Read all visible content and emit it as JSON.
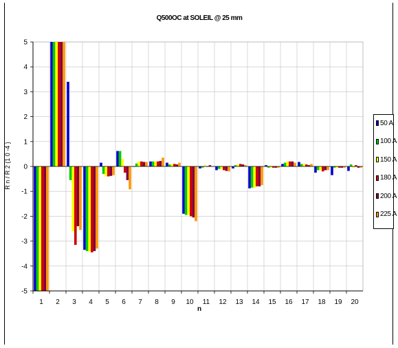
{
  "chart_data": {
    "type": "bar",
    "title": "Q500OC at SOLEIL @ 25 mm",
    "xlabel": "n",
    "ylabel": "R n / R 2 (1 0 -4 )",
    "ylim": [
      -5,
      5
    ],
    "yticks": [
      5,
      4,
      3,
      2,
      1,
      0,
      -1,
      -2,
      -3,
      -4,
      -5
    ],
    "grid": true,
    "legend_position": "right",
    "categories": [
      "1",
      "2",
      "3",
      "4",
      "5",
      "6",
      "7",
      "8",
      "9",
      "10",
      "11",
      "12",
      "13",
      "14",
      "15",
      "16",
      "17",
      "18",
      "19",
      "20"
    ],
    "series": [
      {
        "name": "50 A",
        "color": "#0000cc",
        "values": [
          -5.5,
          5.5,
          3.4,
          -3.35,
          0.15,
          0.62,
          0.0,
          0.2,
          0.15,
          -1.9,
          -0.08,
          -0.15,
          -0.08,
          -0.88,
          0.05,
          0.1,
          0.18,
          -0.25,
          -0.35,
          -0.18
        ]
      },
      {
        "name": "100 A",
        "color": "#00cc00",
        "values": [
          -5.5,
          5.5,
          -0.55,
          -3.4,
          -0.3,
          0.62,
          0.12,
          0.2,
          0.08,
          -1.95,
          -0.05,
          -0.1,
          0.05,
          -0.85,
          -0.05,
          0.15,
          0.1,
          -0.15,
          -0.05,
          0.08
        ]
      },
      {
        "name": "150 A",
        "color": "#ffff00",
        "values": [
          -5.5,
          5.5,
          -2.6,
          -3.42,
          -0.4,
          0.3,
          0.2,
          0.2,
          0.1,
          -1.95,
          0.05,
          -0.1,
          0.08,
          -0.85,
          -0.05,
          0.2,
          0.1,
          -0.15,
          -0.05,
          -0.05
        ]
      },
      {
        "name": "180 A",
        "color": "#cc0000",
        "values": [
          -5.5,
          5.5,
          -3.15,
          -3.45,
          -0.4,
          -0.25,
          0.2,
          0.2,
          0.1,
          -2.0,
          0.0,
          -0.15,
          0.1,
          -0.8,
          -0.05,
          0.2,
          0.08,
          -0.2,
          -0.05,
          0.05
        ]
      },
      {
        "name": "200 A",
        "color": "#800040",
        "values": [
          -5.5,
          5.5,
          -2.4,
          -3.4,
          -0.38,
          -0.55,
          0.18,
          0.22,
          0.08,
          -2.05,
          0.05,
          -0.18,
          0.08,
          -0.8,
          -0.05,
          0.2,
          0.05,
          -0.15,
          -0.05,
          -0.05
        ]
      },
      {
        "name": "225 A",
        "color": "#ff9900",
        "values": [
          -5.5,
          5.5,
          -2.55,
          -3.3,
          -0.35,
          -0.92,
          0.18,
          0.35,
          0.15,
          -2.2,
          0.0,
          -0.2,
          0.05,
          -0.75,
          -0.05,
          0.15,
          0.1,
          -0.15,
          -0.05,
          -0.05
        ]
      }
    ]
  }
}
